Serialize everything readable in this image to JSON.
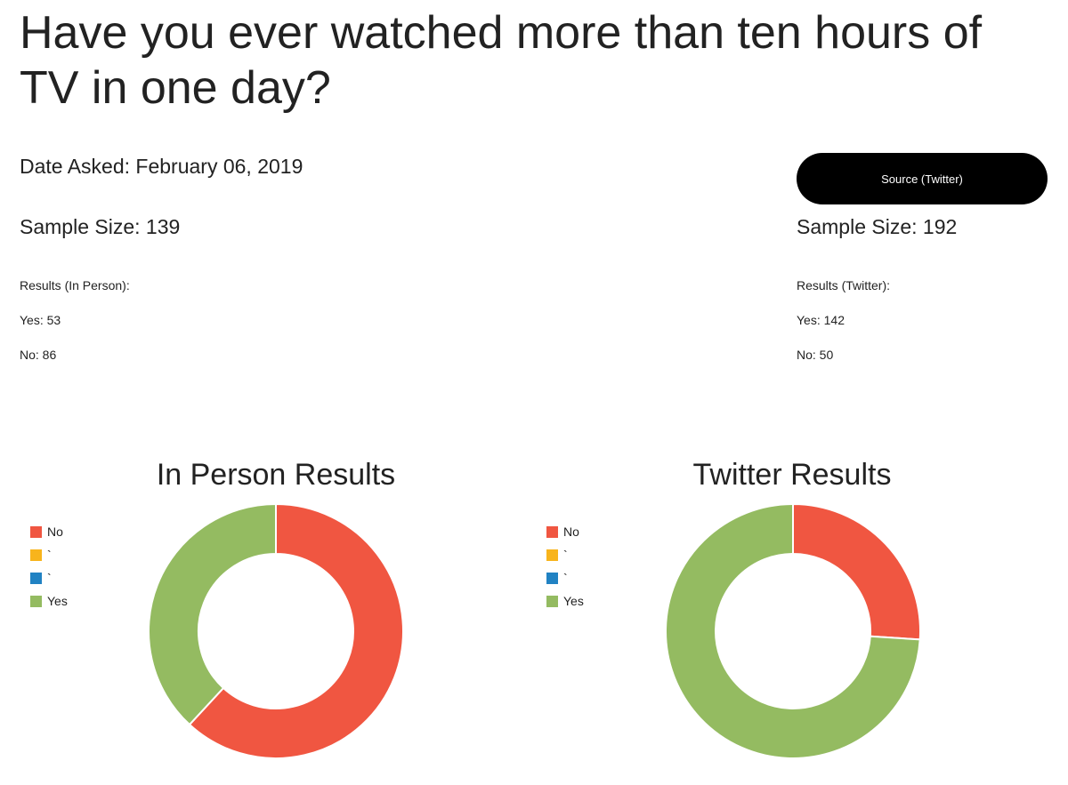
{
  "question": "Have you ever watched more than ten hours of TV in one day?",
  "date_asked": "Date Asked: February 06, 2019",
  "source_button": "Source (Twitter)",
  "in_person": {
    "sample_size": "Sample Size: 139",
    "results_title": "Results (In Person):",
    "yes_line": "Yes: 53",
    "no_line": "No: 86"
  },
  "twitter": {
    "sample_size": "Sample Size: 192",
    "results_title": "Results (Twitter):",
    "yes_line": "Yes: 142",
    "no_line": "No: 50"
  },
  "colors": {
    "no": "#f05641",
    "tick1": "#f8b41c",
    "tick2": "#2182c3",
    "yes": "#94bb61"
  },
  "chart_data": [
    {
      "type": "pie",
      "title": "In Person Results",
      "categories": [
        "No",
        "`",
        "`",
        "Yes"
      ],
      "values": [
        86,
        0,
        0,
        53
      ],
      "legend": "left"
    },
    {
      "type": "pie",
      "title": "Twitter Results",
      "categories": [
        "No",
        "`",
        "`",
        "Yes"
      ],
      "values": [
        50,
        0,
        0,
        142
      ],
      "legend": "left"
    }
  ]
}
